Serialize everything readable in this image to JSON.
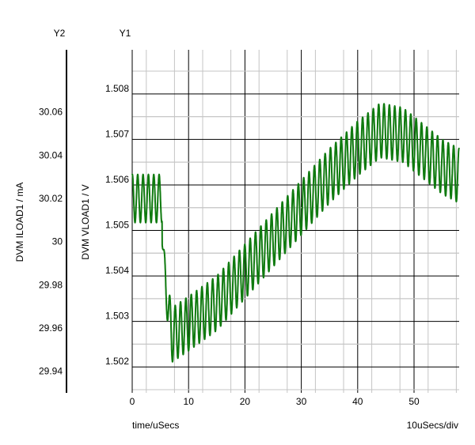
{
  "chart_data": {
    "type": "line",
    "y2_axis": {
      "header": "Y2",
      "label": "DVM ILOAD1 / mA",
      "range": [
        29.93,
        30.0888
      ],
      "ticks": [
        "30.06",
        "30.04",
        "30.02",
        "30",
        "29.98",
        "29.96",
        "29.94"
      ],
      "tick_values": [
        30.06,
        30.04,
        30.02,
        30.0,
        29.98,
        29.96,
        29.94
      ]
    },
    "y1_axis": {
      "header": "Y1",
      "label": "DVM VLOAD1 / V",
      "range": [
        1.50143,
        1.50897
      ],
      "ticks": [
        "1.508",
        "1.507",
        "1.506",
        "1.505",
        "1.504",
        "1.503",
        "1.502"
      ],
      "tick_values": [
        1.508,
        1.507,
        1.506,
        1.505,
        1.504,
        1.503,
        1.502
      ]
    },
    "x_axis": {
      "label": "time/uSecs",
      "scale_label": "10uSecs/div",
      "range": [
        0,
        58
      ],
      "ticks": [
        "0",
        "10",
        "20",
        "30",
        "40",
        "50"
      ],
      "tick_values": [
        0,
        10,
        20,
        30,
        40,
        50
      ],
      "minor_step": 2.5
    },
    "grid": true,
    "series": [
      {
        "axis": "y1",
        "color": "#0f7a0f",
        "oscillation_period_us": 0.95,
        "x": [
          0,
          5.3,
          5.3,
          6.0,
          7.0,
          10,
          15,
          20,
          25,
          30,
          35,
          40,
          44,
          48,
          52,
          55,
          58
        ],
        "center": [
          1.5057,
          1.5057,
          1.5049,
          1.5037,
          1.5027,
          1.50295,
          1.5034,
          1.5041,
          1.5048,
          1.5055,
          1.5062,
          1.5068,
          1.5072,
          1.5071,
          1.5067,
          1.5064,
          1.5062
        ],
        "amplitude": [
          0.00053,
          0.00053,
          0.0002,
          0.0004,
          0.0006,
          0.0006,
          0.0006,
          0.0006,
          0.0006,
          0.0006,
          0.0006,
          0.0006,
          0.0006,
          0.0006,
          0.0006,
          0.0006,
          0.0006
        ]
      }
    ]
  }
}
